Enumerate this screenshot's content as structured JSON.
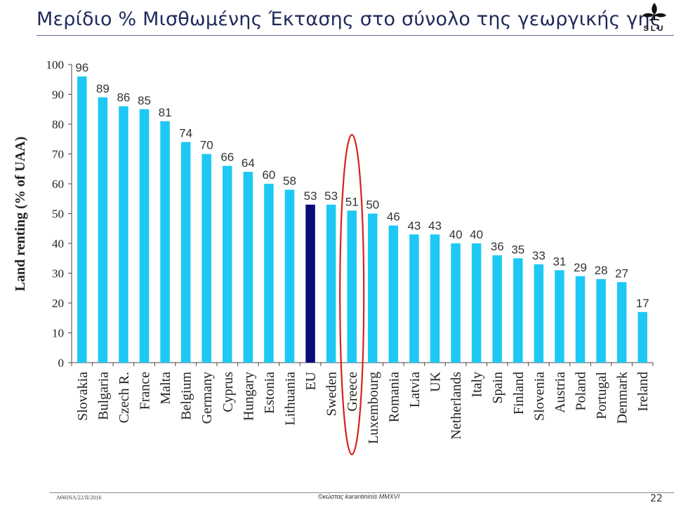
{
  "slide": {
    "title": "Μερίδιο % Μισθωμένης Έκτασης στο σύνολο της γεωργικής γης",
    "logo_text": "SLU",
    "footer_left": "ΑΘΗΝΑ/22/ΙΙ/2016",
    "footer_center": "©κώστας karantininis MMXVI",
    "page_number": "22"
  },
  "colors": {
    "bar": "#1ec8f4",
    "highlight_bar": "#0a0a78",
    "highlight_ellipse": "#d8201c",
    "title": "#1f2a5a"
  },
  "chart_data": {
    "type": "bar",
    "ylabel": "Land renting (% of UAA)",
    "ylim": [
      0,
      100
    ],
    "yticks": [
      0,
      10,
      20,
      30,
      40,
      50,
      60,
      70,
      80,
      90,
      100
    ],
    "categories": [
      "Slovakia",
      "Bulgaria",
      "Czech R.",
      "France",
      "Malta",
      "Belgium",
      "Germany",
      "Cyprus",
      "Hungary",
      "Estonia",
      "Lithuania",
      "EU",
      "Sweden",
      "Greece",
      "Luxembourg",
      "Romania",
      "Latvia",
      "UK",
      "Netherlands",
      "Italy",
      "Spain",
      "Finland",
      "Slovenia",
      "Austria",
      "Poland",
      "Portugal",
      "Denmark",
      "Ireland"
    ],
    "values": [
      96,
      89,
      86,
      85,
      81,
      74,
      70,
      66,
      64,
      60,
      58,
      53,
      53,
      51,
      50,
      46,
      43,
      43,
      40,
      40,
      36,
      35,
      33,
      31,
      29,
      28,
      27,
      17
    ],
    "highlighted_category": "EU",
    "circled_category": "Greece",
    "grid": false
  }
}
